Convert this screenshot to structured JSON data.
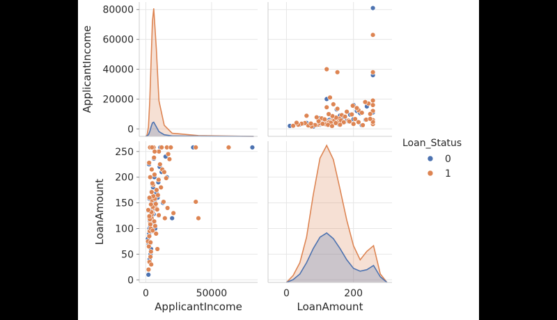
{
  "chart_data": {
    "type": "scatter",
    "subtype": "pairplot",
    "variables": [
      "ApplicantIncome",
      "LoanAmount"
    ],
    "hue": "Loan_Status",
    "legend": {
      "title": "Loan_Status",
      "placement": "right",
      "labels": [
        "0",
        "1"
      ]
    },
    "colors": {
      "0": "#4c72b0",
      "1": "#dd8452"
    },
    "grid": true,
    "axes": {
      "ApplicantIncome": {
        "range": [
          -5000,
          85000
        ],
        "ticks": [
          0,
          50000
        ],
        "tick_labels": [
          "0",
          "50000"
        ],
        "y_ticks": [
          0,
          20000,
          40000,
          60000,
          80000
        ],
        "y_tick_labels": [
          "0",
          "20000",
          "40000",
          "60000",
          "80000"
        ]
      },
      "LoanAmount": {
        "range": [
          -5,
          270
        ],
        "ticks": [
          0,
          50,
          100,
          150,
          200,
          250
        ],
        "tick_labels": [
          "0",
          "50",
          "100",
          "150",
          "200",
          "250"
        ],
        "x_range": [
          -55,
          315
        ],
        "x_ticks": [
          0,
          200
        ],
        "x_tick_labels": [
          "0",
          "200"
        ]
      }
    },
    "axis_labels": {
      "x": [
        "ApplicantIncome",
        "LoanAmount"
      ],
      "y": [
        "ApplicantIncome",
        "LoanAmount"
      ]
    },
    "diag_kde": {
      "ApplicantIncome": {
        "x": [
          0,
          1000,
          2000,
          3000,
          4000,
          5000,
          6000,
          8000,
          10000,
          14000,
          20000,
          40000,
          82000
        ],
        "series": [
          {
            "name": "0",
            "density": [
              0,
              0.5,
              2,
              6,
              12,
              17,
              18,
              12,
              6,
              2,
              0.5,
              0.3,
              0
            ]
          },
          {
            "name": "1",
            "density": [
              0,
              2,
              12,
              45,
              95,
              145,
              162,
              110,
              45,
              14,
              4,
              1,
              0
            ]
          }
        ]
      },
      "LoanAmount": {
        "x": [
          0,
          20,
          40,
          60,
          80,
          100,
          120,
          140,
          160,
          180,
          200,
          220,
          240,
          260,
          280,
          300
        ],
        "series": [
          {
            "name": "0",
            "density": [
              0,
              2,
              6,
              14,
              24,
              32,
              35,
              31,
              24,
              16,
              10,
              8,
              9,
              12,
              4,
              0
            ]
          },
          {
            "name": "1",
            "density": [
              0,
              5,
              14,
              32,
              62,
              88,
              97,
              87,
              66,
              44,
              26,
              16,
              22,
              26,
              6,
              0
            ]
          }
        ]
      }
    },
    "series": [
      {
        "name": "0",
        "points": [
          [
            3500,
            120
          ],
          [
            4200,
            110
          ],
          [
            5000,
            135
          ],
          [
            6000,
            128
          ],
          [
            2800,
            100
          ],
          [
            4800,
            150
          ],
          [
            3900,
            95
          ],
          [
            7000,
            140
          ],
          [
            9000,
            160
          ],
          [
            5500,
            180
          ],
          [
            2500,
            90
          ],
          [
            6500,
            200
          ],
          [
            3000,
            115
          ],
          [
            4500,
            125
          ],
          [
            8000,
            170
          ],
          [
            12000,
            210
          ],
          [
            1500,
            80
          ],
          [
            5200,
            140
          ],
          [
            3300,
            105
          ],
          [
            4100,
            130
          ],
          [
            6800,
            155
          ],
          [
            7500,
            145
          ],
          [
            2200,
            70
          ],
          [
            9500,
            190
          ],
          [
            10500,
            220
          ],
          [
            15000,
            240
          ],
          [
            20000,
            120
          ],
          [
            4000,
            60
          ],
          [
            3600,
            50
          ],
          [
            2900,
            40
          ],
          [
            5800,
            258
          ],
          [
            3100,
            258
          ],
          [
            4600,
            258
          ],
          [
            11000,
            258
          ],
          [
            36000,
            258
          ],
          [
            81000,
            258
          ],
          [
            2000,
            10
          ],
          [
            7200,
            100
          ],
          [
            6300,
            112
          ],
          [
            8500,
            138
          ],
          [
            3800,
            148
          ],
          [
            5600,
            162
          ],
          [
            4300,
            172
          ],
          [
            2600,
            122
          ],
          [
            13000,
            150
          ],
          [
            16000,
            200
          ],
          [
            9800,
            125
          ],
          [
            1800,
            135
          ],
          [
            4900,
            186
          ],
          [
            5100,
            95
          ],
          [
            3700,
            72
          ],
          [
            2400,
            225
          ],
          [
            6100,
            236
          ],
          [
            2700,
            158
          ]
        ]
      },
      {
        "name": "1",
        "points": [
          [
            3200,
            110
          ],
          [
            4400,
            120
          ],
          [
            5100,
            130
          ],
          [
            6200,
            140
          ],
          [
            2900,
            95
          ],
          [
            4700,
            155
          ],
          [
            3800,
            100
          ],
          [
            7300,
            145
          ],
          [
            9200,
            165
          ],
          [
            5600,
            185
          ],
          [
            2600,
            85
          ],
          [
            6600,
            205
          ],
          [
            3100,
            118
          ],
          [
            4600,
            128
          ],
          [
            8200,
            175
          ],
          [
            12500,
            215
          ],
          [
            1600,
            75
          ],
          [
            5300,
            142
          ],
          [
            3400,
            108
          ],
          [
            4200,
            132
          ],
          [
            6900,
            158
          ],
          [
            7600,
            148
          ],
          [
            2300,
            65
          ],
          [
            9700,
            195
          ],
          [
            10800,
            225
          ],
          [
            17000,
            245
          ],
          [
            21000,
            130
          ],
          [
            3900,
            55
          ],
          [
            3500,
            45
          ],
          [
            2800,
            35
          ],
          [
            5900,
            258
          ],
          [
            3200,
            258
          ],
          [
            4700,
            258
          ],
          [
            12000,
            258
          ],
          [
            16000,
            258
          ],
          [
            19000,
            258
          ],
          [
            38000,
            258
          ],
          [
            63000,
            258
          ],
          [
            40000,
            120
          ],
          [
            38000,
            152
          ],
          [
            2100,
            20
          ],
          [
            7100,
            105
          ],
          [
            6400,
            114
          ],
          [
            8600,
            137
          ],
          [
            3900,
            147
          ],
          [
            5700,
            163
          ],
          [
            4400,
            171
          ],
          [
            2700,
            124
          ],
          [
            13500,
            152
          ],
          [
            15500,
            198
          ],
          [
            9900,
            126
          ],
          [
            1900,
            136
          ],
          [
            5000,
            188
          ],
          [
            5200,
            96
          ],
          [
            3600,
            73
          ],
          [
            2500,
            228
          ],
          [
            6200,
            238
          ],
          [
            2800,
            160
          ],
          [
            11500,
            180
          ],
          [
            14000,
            210
          ],
          [
            10000,
            250
          ],
          [
            18000,
            235
          ],
          [
            7800,
            90
          ],
          [
            8800,
            60
          ],
          [
            4100,
            30
          ],
          [
            3300,
            200
          ],
          [
            4500,
            215
          ],
          [
            6700,
            250
          ],
          [
            14500,
            120
          ],
          [
            16500,
            140
          ]
        ]
      }
    ]
  }
}
